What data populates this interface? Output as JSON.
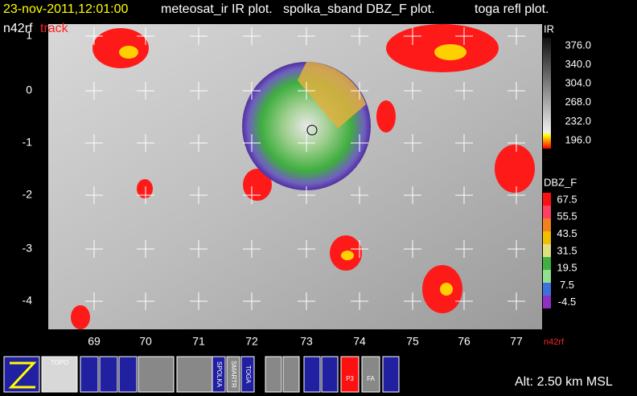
{
  "header": {
    "time": "23-nov-2011,12:01:00",
    "plots": [
      "meteosat_ir IR  plot.",
      "spolka_sband DBZ_F  plot.",
      "toga refl  plot."
    ],
    "aircraft": "n42rf",
    "track": "track"
  },
  "map": {
    "y_labels": [
      "1",
      "0",
      "-1",
      "-2",
      "-3",
      "-4"
    ],
    "x_labels": [
      "69",
      "70",
      "71",
      "72",
      "73",
      "74",
      "75",
      "76",
      "77"
    ],
    "corner_label": "n42rf"
  },
  "ir_scale": {
    "title": "IR",
    "labels": [
      "376.0",
      "340.0",
      "304.0",
      "268.0",
      "232.0",
      "196.0"
    ]
  },
  "dbz_scale": {
    "title": "DBZ_F",
    "labels": [
      "67.5",
      "55.5",
      "43.5",
      "31.5",
      "19.5",
      "7.5",
      "-4.5"
    ]
  },
  "toolbar": {
    "topo": "TOPO",
    "spolka": "SPOLKA",
    "smartr": "SMARTR",
    "toga": "TOGA",
    "p3": "P3",
    "fa": "FA"
  },
  "status": "Alt: 2.50 km MSL"
}
